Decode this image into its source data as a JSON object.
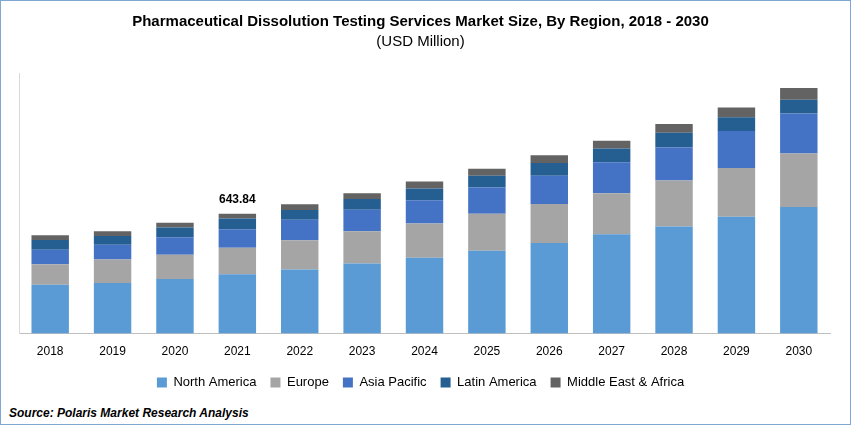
{
  "chart_data": {
    "type": "bar",
    "title": "Pharmaceutical Dissolution Testing Services Market Size, By Region, 2018 - 2030",
    "subtitle": "(USD Million)",
    "categories": [
      "2018",
      "2019",
      "2020",
      "2021",
      "2022",
      "2023",
      "2024",
      "2025",
      "2026",
      "2027",
      "2028",
      "2029",
      "2030"
    ],
    "series": [
      {
        "name": "North America",
        "color": "#5b9bd5",
        "values": [
          262,
          272,
          293,
          319.4,
          345,
          377,
          408,
          445,
          487,
          534,
          576,
          628,
          680
        ]
      },
      {
        "name": "Europe",
        "color": "#a5a5a5",
        "values": [
          110,
          126,
          131,
          141.3,
          157,
          173,
          183,
          199,
          209,
          220,
          246,
          262,
          288
        ]
      },
      {
        "name": "Asia Pacific",
        "color": "#4472c4",
        "values": [
          79,
          79,
          94,
          99.4,
          110,
          115,
          126,
          141,
          152,
          167,
          178,
          199,
          215
        ]
      },
      {
        "name": "Latin America",
        "color": "#255e91",
        "values": [
          52,
          47,
          52,
          57.6,
          52,
          58,
          63,
          63,
          68,
          73,
          79,
          73,
          73
        ]
      },
      {
        "name": "Middle East & Africa",
        "color": "#636363",
        "values": [
          26,
          26,
          26,
          26.14,
          31,
          31,
          37,
          37,
          42,
          42,
          47,
          52,
          63
        ]
      }
    ],
    "ylim": [
      0,
      1400
    ],
    "stacked": true,
    "grid": false,
    "legend": "bottom",
    "tick_labels": "x",
    "annotations": [
      {
        "category": "2021",
        "text": "643.84"
      }
    ],
    "source": "Source: Polaris Market Research Analysis"
  }
}
